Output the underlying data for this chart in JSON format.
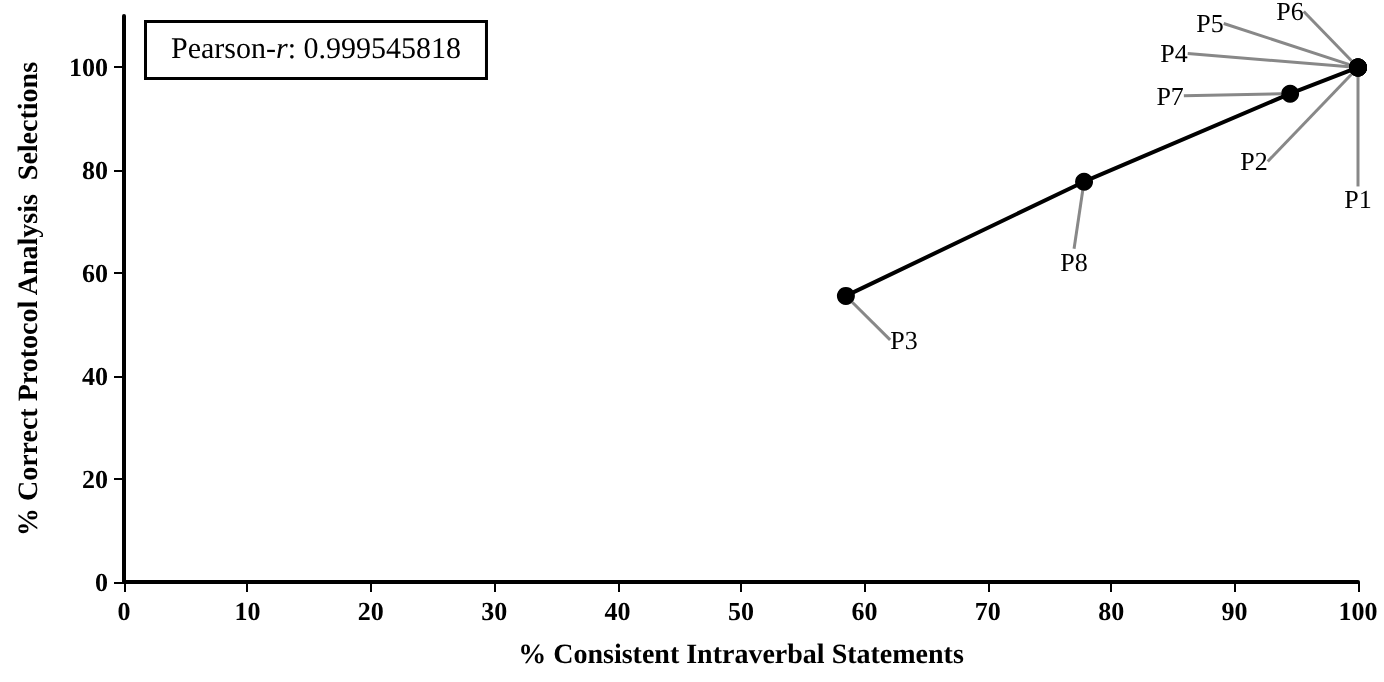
{
  "chart_data": {
    "type": "line",
    "xlabel": "% Consistent Intraverbal Statements",
    "ylabel": "% Correct Protocol Analysis  Selections",
    "annotations": [
      "Pearson-r: 0.999545818"
    ],
    "x": [
      58.5,
      77.8,
      94.5,
      100,
      100,
      100,
      100,
      100
    ],
    "series": [
      {
        "color": "#000000",
        "values": [
          55.6,
          77.8,
          94.9,
          100,
          100,
          100,
          100,
          100
        ],
        "value_labels": [
          "P3",
          "P8",
          "P7",
          "P1",
          "P2",
          "P4",
          "P5",
          "P6"
        ]
      }
    ],
    "xlim": [
      0,
      100
    ],
    "xticks": [
      0,
      10,
      20,
      30,
      40,
      50,
      60,
      70,
      80,
      90,
      100
    ],
    "ylim": [
      0,
      110
    ],
    "yticks": [
      0,
      20,
      40,
      60,
      80,
      100
    ],
    "grid": false,
    "marker": "circle",
    "line_style": "solid"
  }
}
